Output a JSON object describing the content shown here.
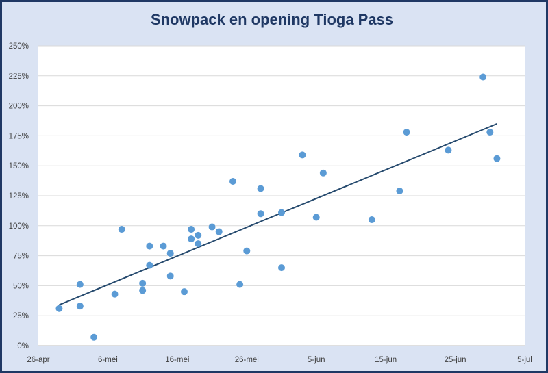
{
  "chart_data": {
    "type": "scatter",
    "title": "Snowpack en opening Tioga Pass",
    "xlabel": "",
    "ylabel": "",
    "x_ticks": [
      "26-apr",
      "6-mei",
      "16-mei",
      "26-mei",
      "5-jun",
      "15-jun",
      "25-jun",
      "5-jul"
    ],
    "x_tick_dates": [
      "04-26",
      "05-06",
      "05-16",
      "05-26",
      "06-05",
      "06-15",
      "06-25",
      "07-05"
    ],
    "xlim": [
      "04-26",
      "07-05"
    ],
    "y_ticks": [
      "0%",
      "25%",
      "50%",
      "75%",
      "100%",
      "125%",
      "150%",
      "175%",
      "200%",
      "225%",
      "250%"
    ],
    "ylim": [
      0,
      250
    ],
    "grid": "horizontal",
    "marker_color": "#5b9bd5",
    "trendline_color": "#264a6e",
    "points": [
      {
        "x": "04-29",
        "y": 31
      },
      {
        "x": "05-02",
        "y": 51
      },
      {
        "x": "05-02",
        "y": 33
      },
      {
        "x": "05-04",
        "y": 7
      },
      {
        "x": "05-07",
        "y": 43
      },
      {
        "x": "05-08",
        "y": 97
      },
      {
        "x": "05-11",
        "y": 52
      },
      {
        "x": "05-11",
        "y": 46
      },
      {
        "x": "05-12",
        "y": 83
      },
      {
        "x": "05-12",
        "y": 67
      },
      {
        "x": "05-14",
        "y": 83
      },
      {
        "x": "05-15",
        "y": 77
      },
      {
        "x": "05-15",
        "y": 58
      },
      {
        "x": "05-17",
        "y": 45
      },
      {
        "x": "05-18",
        "y": 97
      },
      {
        "x": "05-18",
        "y": 89
      },
      {
        "x": "05-19",
        "y": 92
      },
      {
        "x": "05-19",
        "y": 85
      },
      {
        "x": "05-21",
        "y": 99
      },
      {
        "x": "05-22",
        "y": 95
      },
      {
        "x": "05-24",
        "y": 137
      },
      {
        "x": "05-25",
        "y": 51
      },
      {
        "x": "05-26",
        "y": 79
      },
      {
        "x": "05-28",
        "y": 131
      },
      {
        "x": "05-28",
        "y": 110
      },
      {
        "x": "05-31",
        "y": 111
      },
      {
        "x": "05-31",
        "y": 65
      },
      {
        "x": "06-03",
        "y": 159
      },
      {
        "x": "06-05",
        "y": 107
      },
      {
        "x": "06-06",
        "y": 144
      },
      {
        "x": "06-13",
        "y": 105
      },
      {
        "x": "06-17",
        "y": 129
      },
      {
        "x": "06-18",
        "y": 178
      },
      {
        "x": "06-24",
        "y": 163
      },
      {
        "x": "06-29",
        "y": 224
      },
      {
        "x": "06-30",
        "y": 178
      },
      {
        "x": "07-01",
        "y": 156
      }
    ],
    "trendline": {
      "type": "linear",
      "start": {
        "x": "04-29",
        "y": 34
      },
      "end": {
        "x": "07-01",
        "y": 185
      }
    }
  }
}
